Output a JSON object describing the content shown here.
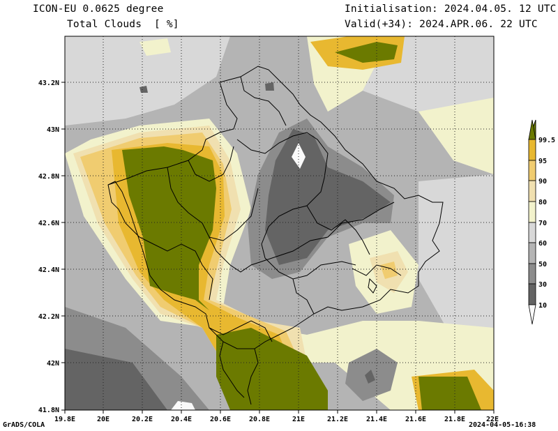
{
  "header": {
    "model": "ICON-EU 0.0625 degree",
    "variable": "Total Clouds  [ %]",
    "init": "Initialisation: 2024.04.05. 12 UTC",
    "valid": "Valid(+34): 2024.APR.06. 22 UTC"
  },
  "footer": {
    "credit": "GrADS/COLA",
    "timestamp": "2024-04-05-16:38"
  },
  "map": {
    "lon_labels": [
      "19.8E",
      "20E",
      "20.2E",
      "20.4E",
      "20.6E",
      "20.8E",
      "21E",
      "21.2E",
      "21.4E",
      "21.6E",
      "21.8E",
      "22E"
    ],
    "lat_labels": [
      "43.2N",
      "43N",
      "42.8N",
      "42.6N",
      "42.4N",
      "42.2N",
      "42N",
      "41.8N"
    ],
    "lon_range": [
      19.8,
      22.0
    ],
    "lat_range": [
      41.8,
      43.4
    ]
  },
  "colorbar": {
    "labels": [
      "99.5",
      "95",
      "90",
      "80",
      "70",
      "60",
      "50",
      "30",
      "10"
    ],
    "colors": [
      "#6b7a00",
      "#e8b830",
      "#f0cc70",
      "#f0e0b0",
      "#f2f2cc",
      "#d8d8d8",
      "#b4b4b4",
      "#8c8c8c",
      "#646464",
      "#fafafa"
    ]
  }
}
